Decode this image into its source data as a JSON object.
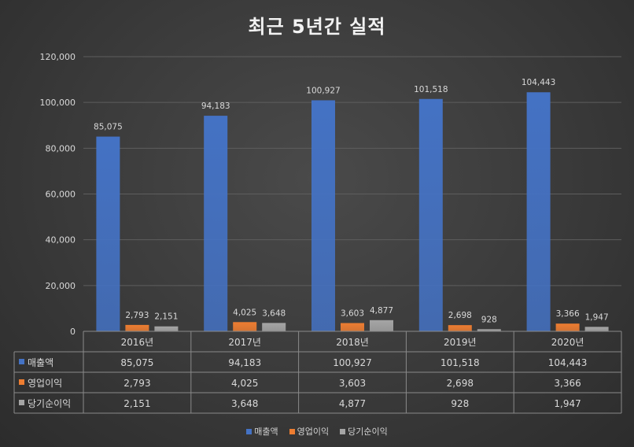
{
  "chart_data": {
    "type": "bar",
    "title": "최근 5년간 실적",
    "categories": [
      "2016년",
      "2017년",
      "2018년",
      "2019년",
      "2020년"
    ],
    "series": [
      {
        "name": "매출액",
        "color": "#4472c4",
        "values": [
          85075,
          94183,
          100927,
          101518,
          104443
        ],
        "labels": [
          "85,075",
          "94,183",
          "100,927",
          "101,518",
          "104,443"
        ]
      },
      {
        "name": "영업이익",
        "color": "#ed7d31",
        "values": [
          2793,
          4025,
          3603,
          2698,
          3366
        ],
        "labels": [
          "2,793",
          "4,025",
          "3,603",
          "2,698",
          "3,366"
        ]
      },
      {
        "name": "당기순이익",
        "color": "#a5a5a5",
        "values": [
          2151,
          3648,
          4877,
          928,
          1947
        ],
        "labels": [
          "2,151",
          "3,648",
          "4,877",
          "928",
          "1,947"
        ]
      }
    ],
    "ylim": [
      0,
      120000
    ],
    "yticks": [
      "0",
      "20,000",
      "40,000",
      "60,000",
      "80,000",
      "100,000",
      "120,000"
    ],
    "grid": true,
    "data_table": true,
    "legend_position": "bottom"
  }
}
